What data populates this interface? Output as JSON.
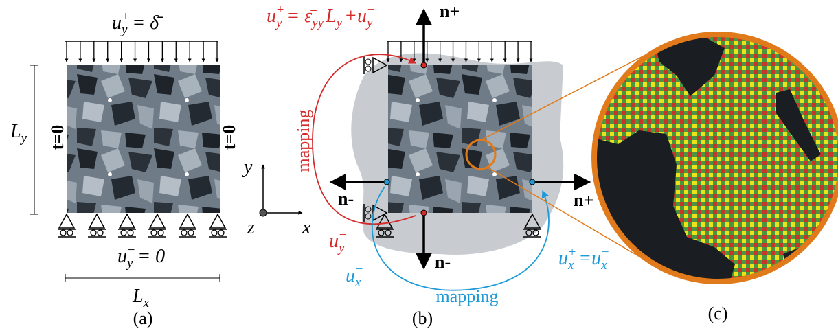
{
  "panel_a": {
    "top_load": [
      {
        "text": "u"
      },
      {
        "sub": "y"
      },
      {
        "sup": "+"
      },
      {
        "text": "= δ̄"
      }
    ],
    "traction_left": "t=0",
    "traction_right": "t=0",
    "height": [
      {
        "text": "L"
      },
      {
        "sub": "y"
      }
    ],
    "bottom_bc": [
      {
        "text": "u"
      },
      {
        "sub": "y"
      },
      {
        "sup": "−"
      },
      {
        "text": "= 0"
      }
    ],
    "width": [
      {
        "text": "L"
      },
      {
        "sub": "x"
      }
    ],
    "caption": "(a)"
  },
  "axes": {
    "y": "y",
    "z": "z",
    "x": "x"
  },
  "panel_b": {
    "top_bc": [
      {
        "text": "u"
      },
      {
        "sub": "y"
      },
      {
        "sup": "+"
      },
      {
        "text": "= ε̄"
      },
      {
        "sub": "yy"
      },
      {
        "text": "L"
      },
      {
        "sub": "y"
      },
      {
        "text": "+u"
      },
      {
        "sub": "y"
      },
      {
        "sup": "−"
      }
    ],
    "normal_top": "n+",
    "normal_left": "n-",
    "normal_right": "n+",
    "normal_bottom": "n-",
    "mapping_y": "mapping",
    "mapping_x": "mapping",
    "bottom_u": [
      {
        "text": "u"
      },
      {
        "sub": "y"
      },
      {
        "sup": "−"
      }
    ],
    "left_u": [
      {
        "text": "u"
      },
      {
        "sub": "x"
      },
      {
        "sup": "−"
      }
    ],
    "right_u": [
      {
        "text": "u"
      },
      {
        "sub": "x"
      },
      {
        "sup": "+"
      },
      {
        "text": "=u"
      },
      {
        "sub": "x"
      },
      {
        "sup": "−"
      }
    ],
    "caption": "(b)"
  },
  "panel_c": {
    "caption": "(c)"
  }
}
